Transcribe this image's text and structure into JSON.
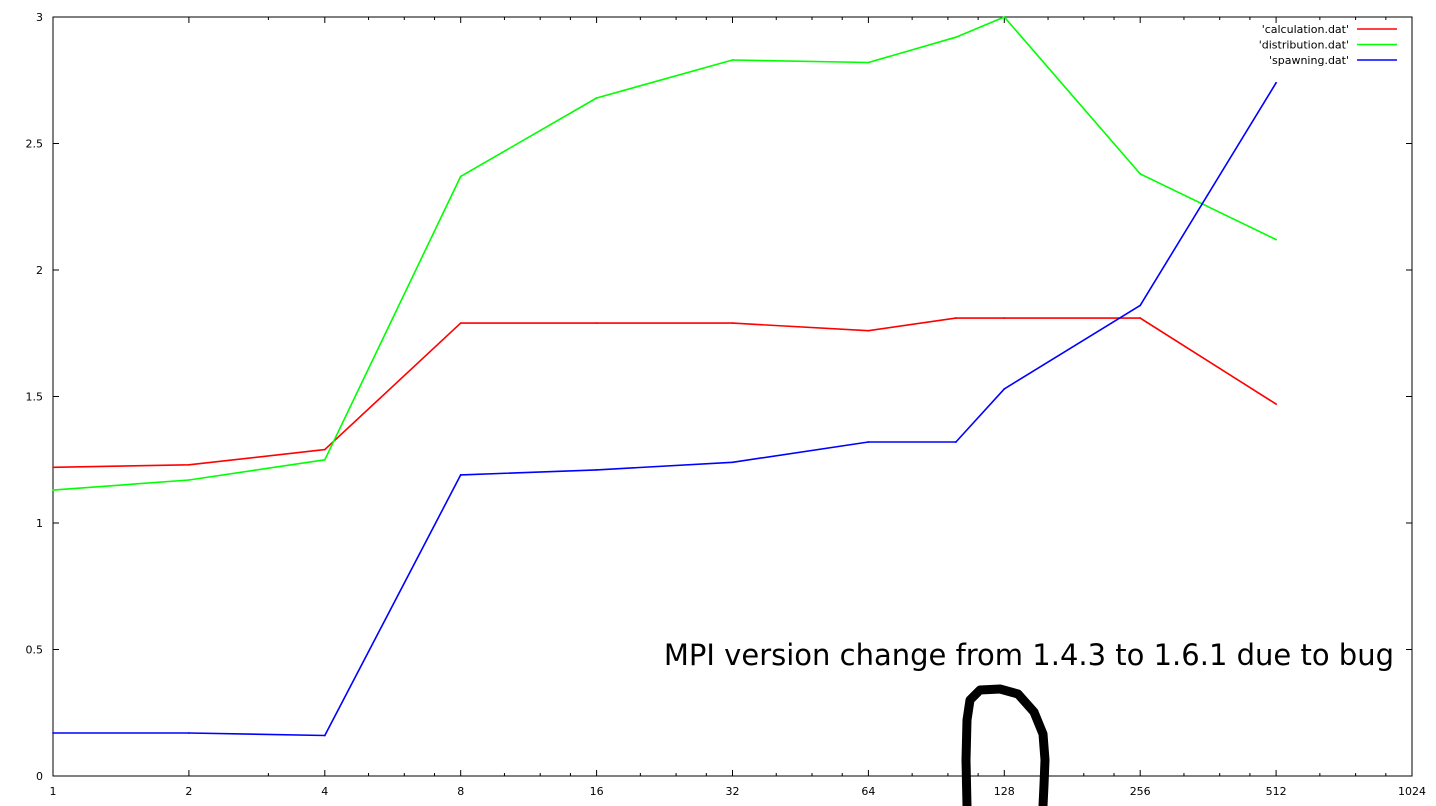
{
  "chart_data": {
    "type": "line",
    "x_scale": "log2",
    "xlim": [
      1,
      1024
    ],
    "ylim": [
      0,
      3
    ],
    "x_ticks": [
      1,
      2,
      4,
      8,
      16,
      32,
      64,
      128,
      256,
      512,
      1024
    ],
    "x_tick_labels": [
      "1",
      "2",
      "4",
      "8",
      "16",
      "32",
      "64",
      "128",
      "256",
      "512",
      "1024"
    ],
    "y_ticks": [
      0,
      0.5,
      1,
      1.5,
      2,
      2.5,
      3
    ],
    "y_tick_labels": [
      "0",
      "0.5",
      "1",
      "1.5",
      "2",
      "2.5",
      "3"
    ],
    "grid": false,
    "legend_position": "top-right",
    "series": [
      {
        "name": "'calculation.dat'",
        "color": "#ff0000",
        "x": [
          1,
          2,
          4,
          8,
          16,
          32,
          64,
          100,
          128,
          256,
          512
        ],
        "y": [
          1.22,
          1.23,
          1.29,
          1.79,
          1.79,
          1.79,
          1.76,
          1.81,
          1.81,
          1.81,
          1.47
        ]
      },
      {
        "name": "'distribution.dat'",
        "color": "#00ff00",
        "x": [
          1,
          2,
          4,
          8,
          16,
          32,
          64,
          100,
          128,
          256,
          512
        ],
        "y": [
          1.13,
          1.17,
          1.25,
          2.37,
          2.68,
          2.83,
          2.82,
          2.92,
          3.0,
          2.38,
          2.12
        ]
      },
      {
        "name": "'spawning.dat'",
        "color": "#0000ff",
        "x": [
          1,
          2,
          4,
          8,
          16,
          32,
          64,
          100,
          128,
          256,
          512
        ],
        "y": [
          0.17,
          0.17,
          0.16,
          1.19,
          1.21,
          1.24,
          1.32,
          1.32,
          1.53,
          1.86,
          2.74
        ]
      }
    ],
    "annotation": "MPI version change from 1.4.3 to 1.6.1 due to bug",
    "annotation_marker": "hand-drawn-arrow"
  }
}
